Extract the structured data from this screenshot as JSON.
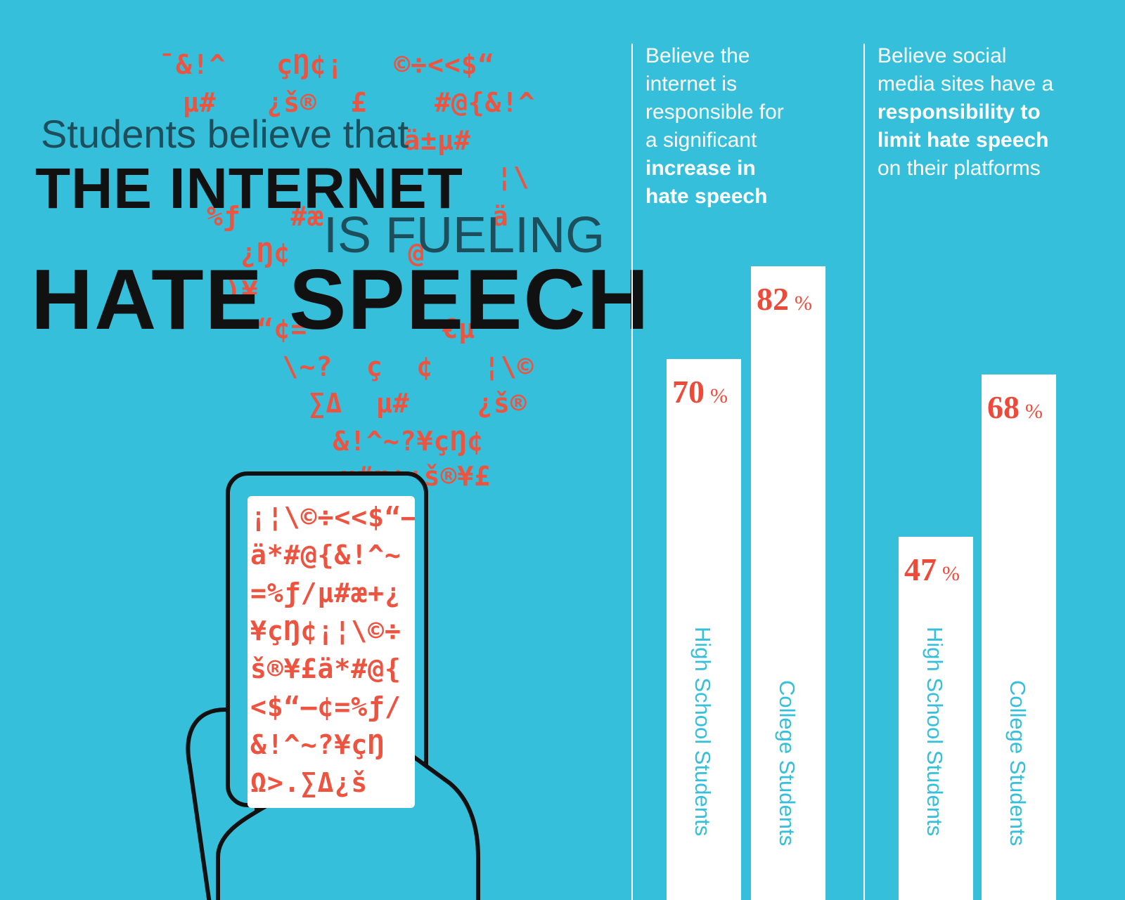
{
  "headline": {
    "line1": "Students believe that",
    "line2": "THE INTERNET",
    "line3": "IS FUELING",
    "line4": "HATE SPEECH"
  },
  "glyph_cloud": [
    "¯&!^   çŊ¢¡   ©÷<<$“",
    " µ#   ¿š®  £    #@{&!^",
    "              ä±µ#",
    "                 ¦\\",
    " %ƒ   #æ          ä",
    "   ¿Ŋ¢       @",
    "  )¥                  ",
    "   “¢=        €µ",
    "    \\~?  ç  ¢   ¦\\©",
    "     ∑Δ  µ#    ¿š®",
    "      &!^~?¥çŊ¢",
    "      µ#æ+¿š®¥£"
  ],
  "phone_text": [
    "¡¦\\©÷<<$“–",
    "ä*#@{&!^~",
    "=%ƒ/µ#æ+¿",
    "¥çŊ¢¡¦\\©÷",
    "š®¥£ä*#@{",
    "<$“–¢=%ƒ/",
    "&!^~?¥çŊ",
    "Ω>.∑Δ¿š"
  ],
  "colors": {
    "background": "#35bfdb",
    "accent_red": "#ee4a3a",
    "bar": "#ffffff",
    "ink": "#111111"
  },
  "chart_data": [
    {
      "type": "bar",
      "title_parts": [
        {
          "text": "Believe the",
          "bold": false
        },
        {
          "text": "internet is",
          "bold": false
        },
        {
          "text": "responsible for",
          "bold": false
        },
        {
          "text": "a significant",
          "bold": false
        },
        {
          "text": "increase in",
          "bold": true
        },
        {
          "text": "hate speech",
          "bold": true
        }
      ],
      "categories": [
        "High School Students",
        "College Students"
      ],
      "values": [
        70,
        82
      ],
      "value_labels": [
        "70",
        "82"
      ],
      "unit": "%",
      "ylim": [
        0,
        100
      ],
      "grid": false,
      "legend": "none"
    },
    {
      "type": "bar",
      "title_parts": [
        {
          "text": "Believe social",
          "bold": false
        },
        {
          "text": "media sites have a",
          "bold": false
        },
        {
          "text": "responsibility to",
          "bold": true
        },
        {
          "text": "limit hate speech",
          "bold": true
        },
        {
          "text": "on their platforms",
          "bold": false
        }
      ],
      "categories": [
        "High School Students",
        "College Students"
      ],
      "values": [
        47,
        68
      ],
      "value_labels": [
        "47",
        "68"
      ],
      "unit": "%",
      "ylim": [
        0,
        100
      ],
      "grid": false,
      "legend": "none"
    }
  ]
}
